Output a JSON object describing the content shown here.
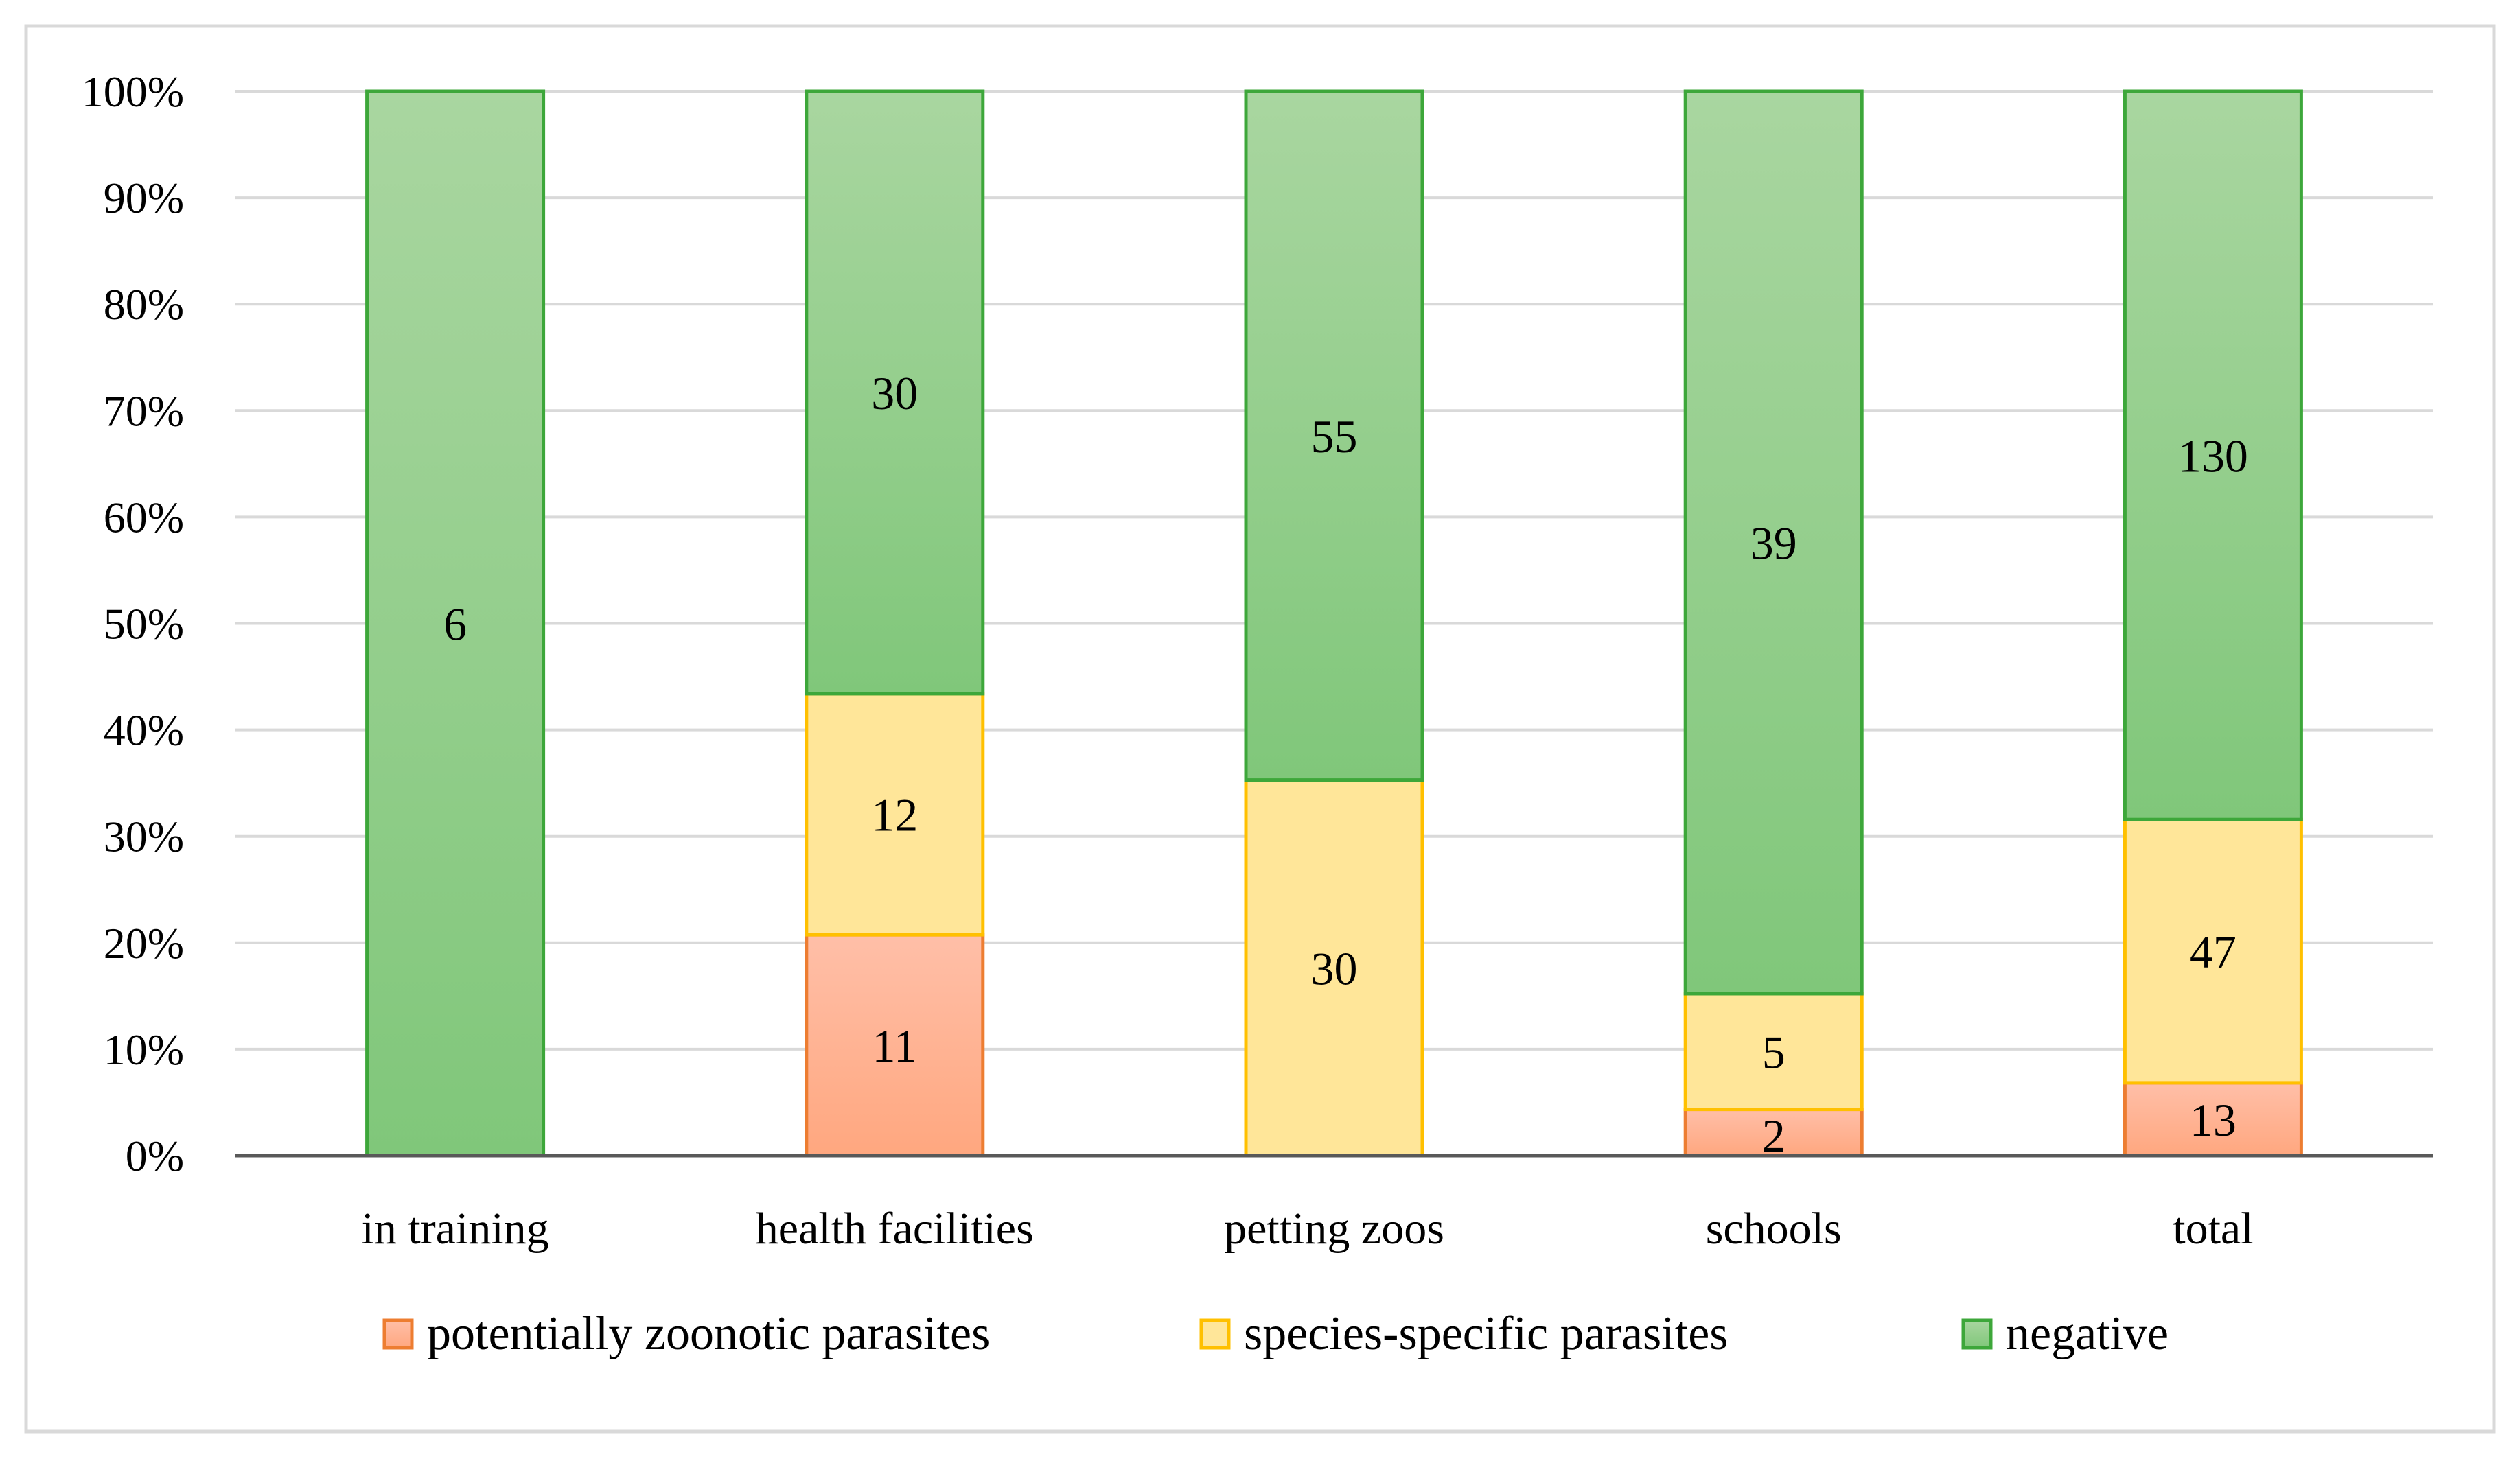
{
  "chart_data": {
    "type": "bar",
    "stacked": "percent",
    "categories": [
      "in training",
      "health facilities",
      "petting zoos",
      "schools",
      "total"
    ],
    "series": [
      {
        "name": "potentially zoonotic parasites",
        "values": [
          0,
          11,
          0,
          2,
          13
        ],
        "labels": [
          "",
          "11",
          "",
          "2",
          "13"
        ]
      },
      {
        "name": "species-specific parasites",
        "values": [
          0,
          12,
          30,
          5,
          47
        ],
        "labels": [
          "",
          "12",
          "30",
          "5",
          "47"
        ]
      },
      {
        "name": "negative",
        "values": [
          6,
          30,
          55,
          39,
          130
        ],
        "labels": [
          "6",
          "30",
          "55",
          "39",
          "130"
        ]
      }
    ],
    "ylim": [
      0,
      100
    ],
    "yticks": [
      "0%",
      "10%",
      "20%",
      "30%",
      "40%",
      "50%",
      "60%",
      "70%",
      "80%",
      "90%",
      "100%"
    ],
    "grid": true,
    "legend": "bottom",
    "colors": {
      "potentially zoonotic parasites": {
        "top": "#FFBFA8",
        "bottom": "#FFA77F",
        "stroke": "#ED7D31"
      },
      "species-specific parasites": {
        "top": "#FFE699",
        "bottom": "#FFE699",
        "stroke": "#FFC000"
      },
      "negative": {
        "top": "#A9D6A0",
        "bottom": "#80C77A",
        "stroke": "#3DA73A"
      },
      "gridline": "#D9D9D9",
      "axis": "#595959",
      "frame": "#D9D9D9"
    }
  }
}
